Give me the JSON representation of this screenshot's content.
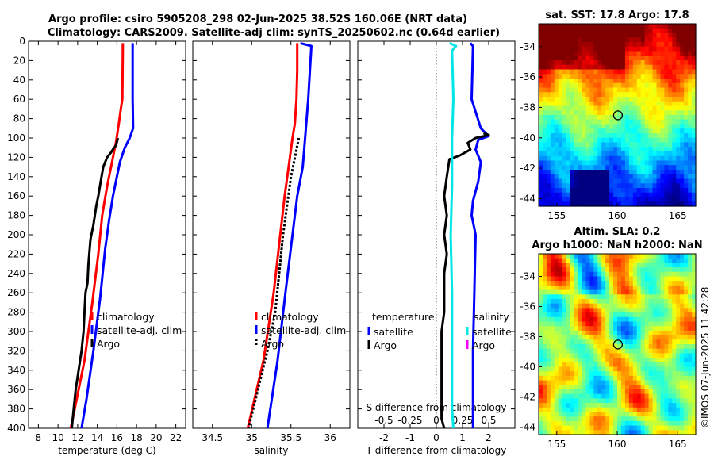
{
  "titles": {
    "line1": "Argo profile: csiro 5905208_298 02-Jun-2025 38.52S 160.06E (NRT data)",
    "line2": "Climatology: CARS2009. Satellite-adj clim: synTS_20250602.nc (0.64d earlier)"
  },
  "footer_stamp": "©IMOS 07-Jun-2025 11:42:28",
  "colors": {
    "red": "#ff0000",
    "blue": "#0000ff",
    "black": "#000000",
    "cyan": "#00e6e6",
    "magenta": "#ff00ff"
  },
  "chart_data": [
    {
      "id": "temperature",
      "type": "line",
      "xlabel": "temperature (deg C)",
      "ylabel": "",
      "xlim": [
        7,
        23
      ],
      "ylim": [
        400,
        0
      ],
      "xticks": [
        8,
        10,
        12,
        14,
        16,
        18,
        20,
        22
      ],
      "yticks": [
        0,
        20,
        40,
        60,
        80,
        100,
        120,
        140,
        160,
        180,
        200,
        220,
        240,
        260,
        280,
        300,
        320,
        340,
        360,
        380,
        400
      ],
      "series": [
        {
          "name": "climatology",
          "color": "red",
          "dashed": false,
          "points": [
            [
              16.6,
              2
            ],
            [
              16.6,
              10
            ],
            [
              16.55,
              60
            ],
            [
              16.4,
              70
            ],
            [
              16.2,
              85
            ],
            [
              15.9,
              105
            ],
            [
              15.6,
              120
            ],
            [
              15.0,
              150
            ],
            [
              14.5,
              180
            ],
            [
              14.1,
              220
            ],
            [
              13.5,
              270
            ],
            [
              12.7,
              330
            ],
            [
              11.5,
              390
            ],
            [
              11.3,
              400
            ]
          ]
        },
        {
          "name": "satellite-adj. clim",
          "color": "blue",
          "dashed": false,
          "points": [
            [
              17.6,
              2
            ],
            [
              17.6,
              60
            ],
            [
              17.65,
              90
            ],
            [
              17.3,
              100
            ],
            [
              16.8,
              110
            ],
            [
              16.3,
              125
            ],
            [
              15.9,
              145
            ],
            [
              15.6,
              160
            ],
            [
              15.2,
              185
            ],
            [
              14.8,
              215
            ],
            [
              14.3,
              265
            ],
            [
              13.6,
              320
            ],
            [
              12.9,
              370
            ],
            [
              12.4,
              400
            ]
          ]
        },
        {
          "name": "Argo",
          "color": "black",
          "dashed": false,
          "points": [
            [
              16.1,
              100
            ],
            [
              15.9,
              108
            ],
            [
              15.7,
              110
            ],
            [
              15.4,
              115
            ],
            [
              15.0,
              120
            ],
            [
              14.6,
              130
            ],
            [
              14.3,
              148
            ],
            [
              14.1,
              160
            ],
            [
              13.9,
              170
            ],
            [
              13.6,
              190
            ],
            [
              13.3,
              205
            ],
            [
              13.1,
              230
            ],
            [
              13.0,
              250
            ],
            [
              12.8,
              260
            ],
            [
              12.7,
              280
            ],
            [
              12.6,
              300
            ],
            [
              12.4,
              320
            ],
            [
              12.1,
              340
            ],
            [
              11.8,
              360
            ],
            [
              11.6,
              380
            ],
            [
              11.4,
              400
            ]
          ]
        }
      ]
    },
    {
      "id": "salinity",
      "type": "line",
      "xlabel": "salinity",
      "ylabel": "",
      "xlim": [
        34.25,
        36.25
      ],
      "ylim": [
        400,
        0
      ],
      "xticks": [
        34.5,
        35,
        35.5,
        36
      ],
      "series": [
        {
          "name": "climatology",
          "color": "red",
          "dashed": false,
          "points": [
            [
              35.58,
              2
            ],
            [
              35.58,
              30
            ],
            [
              35.57,
              60
            ],
            [
              35.55,
              85
            ],
            [
              35.52,
              100
            ],
            [
              35.47,
              130
            ],
            [
              35.42,
              160
            ],
            [
              35.35,
              210
            ],
            [
              35.28,
              260
            ],
            [
              35.15,
              330
            ],
            [
              34.95,
              400
            ]
          ]
        },
        {
          "name": "satellite-adj. clim",
          "color": "blue",
          "dashed": false,
          "points": [
            [
              35.62,
              2
            ],
            [
              35.76,
              5
            ],
            [
              35.72,
              60
            ],
            [
              35.68,
              100
            ],
            [
              35.65,
              130
            ],
            [
              35.58,
              160
            ],
            [
              35.52,
              200
            ],
            [
              35.43,
              260
            ],
            [
              35.33,
              330
            ],
            [
              35.2,
              400
            ]
          ]
        },
        {
          "name": "Argo",
          "color": "black",
          "dashed": true,
          "points": [
            [
              35.6,
              100
            ],
            [
              35.55,
              120
            ],
            [
              35.5,
              140
            ],
            [
              35.45,
              170
            ],
            [
              35.4,
              200
            ],
            [
              35.35,
              240
            ],
            [
              35.3,
              280
            ],
            [
              35.2,
              320
            ],
            [
              35.08,
              360
            ],
            [
              34.96,
              400
            ]
          ]
        }
      ]
    },
    {
      "id": "difference",
      "type": "line",
      "xlabel": "T difference from climatology",
      "xlabel_top": "S difference from climatology",
      "xlim": [
        -3,
        3
      ],
      "ylim": [
        400,
        0
      ],
      "xticks": [
        -2,
        -1,
        0,
        1,
        2
      ],
      "xticks_labels": [
        "-2",
        "-1",
        "0",
        "1",
        "2"
      ],
      "sticks": [
        -0.5,
        -0.25,
        0,
        0.25,
        0.5
      ],
      "sticks_labels": [
        "-0.5",
        "-0.25",
        "0",
        "0.25",
        "0.5"
      ],
      "series": [
        {
          "name": "temperature satellite",
          "color": "blue",
          "dashed": false,
          "points": [
            [
              1.3,
              2
            ],
            [
              1.4,
              5
            ],
            [
              1.35,
              60
            ],
            [
              1.7,
              90
            ],
            [
              2.0,
              98
            ],
            [
              1.6,
              102
            ],
            [
              1.5,
              112
            ],
            [
              1.7,
              125
            ],
            [
              1.6,
              145
            ],
            [
              1.4,
              165
            ],
            [
              1.35,
              180
            ],
            [
              1.5,
              200
            ],
            [
              1.45,
              260
            ],
            [
              1.4,
              320
            ],
            [
              1.4,
              400
            ]
          ]
        },
        {
          "name": "temperature Argo",
          "color": "black",
          "dashed": false,
          "points": [
            [
              1.8,
              95
            ],
            [
              2.0,
              97
            ],
            [
              1.5,
              100
            ],
            [
              1.2,
              105
            ],
            [
              1.3,
              112
            ],
            [
              0.9,
              118
            ],
            [
              0.5,
              122
            ],
            [
              0.4,
              140
            ],
            [
              0.3,
              160
            ],
            [
              0.4,
              180
            ],
            [
              0.3,
              200
            ],
            [
              0.4,
              220
            ],
            [
              0.3,
              240
            ],
            [
              0.3,
              260
            ],
            [
              0.3,
              280
            ],
            [
              0.2,
              300
            ],
            [
              0.2,
              330
            ],
            [
              0.2,
              360
            ],
            [
              0.2,
              390
            ],
            [
              0.3,
              400
            ]
          ]
        },
        {
          "name": "salinity satellite",
          "color": "cyan",
          "dashed": false,
          "points": [
            [
              0.5,
              2
            ],
            [
              0.75,
              5
            ],
            [
              0.6,
              10
            ],
            [
              0.65,
              60
            ],
            [
              0.6,
              100
            ],
            [
              0.6,
              150
            ],
            [
              0.55,
              200
            ],
            [
              0.6,
              260
            ],
            [
              0.6,
              330
            ],
            [
              0.6,
              380
            ],
            [
              0.65,
              400
            ]
          ]
        }
      ],
      "legend": {
        "temperature_heading": "temperature",
        "salinity_heading": "salinity",
        "t_items": [
          "satellite",
          "Argo"
        ],
        "s_items": [
          "satellite",
          "Argo"
        ]
      }
    },
    {
      "id": "sst_map",
      "type": "heatmap",
      "title": "sat. SST: 17.8 Argo: 17.8",
      "xlim": [
        153.5,
        166.5
      ],
      "ylim": [
        -44.5,
        -32.5
      ],
      "xticks": [
        155,
        160,
        165
      ],
      "yticks": [
        -34,
        -36,
        -38,
        -40,
        -42,
        -44
      ],
      "marker": [
        160.06,
        -38.52
      ]
    },
    {
      "id": "sla_map",
      "type": "heatmap",
      "title_line1": "Altim. SLA: 0.2",
      "title_line2": "Argo h1000: NaN h2000: NaN",
      "xlim": [
        153.5,
        166.5
      ],
      "ylim": [
        -44.5,
        -32.5
      ],
      "xticks": [
        155,
        160,
        165
      ],
      "yticks": [
        -34,
        -36,
        -38,
        -40,
        -42,
        -44
      ],
      "marker": [
        160.06,
        -38.52
      ]
    }
  ],
  "legends": {
    "profile": [
      "climatology",
      "satellite-adj. clim",
      "Argo"
    ]
  }
}
